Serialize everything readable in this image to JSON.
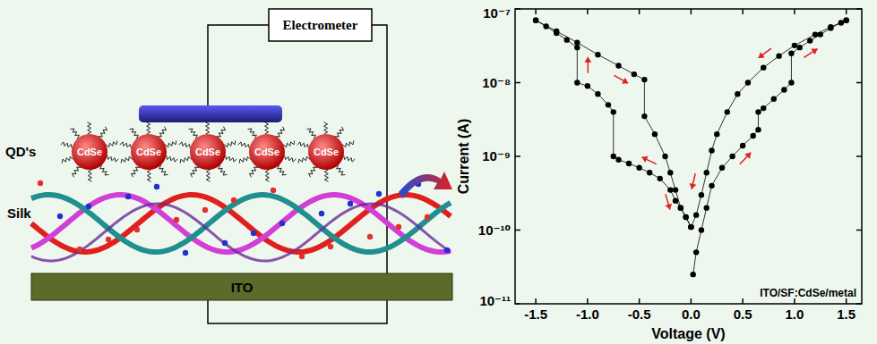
{
  "diagram": {
    "electrometer": "Electrometer",
    "qd_label": "QD's",
    "silk_label": "Silk",
    "substrate": "ITO",
    "quantum_dots": [
      "CdSe",
      "CdSe",
      "CdSe",
      "CdSe",
      "CdSe"
    ]
  },
  "chart_data": {
    "type": "line",
    "log": "y",
    "x_label": "Voltage (V)",
    "y_label": "Current (A)",
    "annotation": "ITO/SF:CdSe/metal",
    "xlim": [
      -1.7,
      1.65
    ],
    "ylim": [
      1e-11,
      1e-07
    ],
    "xticks": [
      -1.5,
      {
        "value": -1,
        "label": "-1.0"
      },
      -0.5,
      {
        "value": 0,
        "label": "0.0"
      },
      0.5,
      {
        "value": 1,
        "label": "1.0"
      },
      1.5
    ],
    "yticks": [
      {
        "value": 1e-11,
        "label": "10⁻¹¹"
      },
      {
        "value": 1e-10,
        "label": "10⁻¹⁰"
      },
      {
        "value": 1e-09,
        "label": "10⁻⁹"
      },
      {
        "value": 1e-08,
        "label": "10⁻⁸"
      },
      {
        "value": 1e-07,
        "label": "10⁻⁷"
      }
    ],
    "series": [
      {
        "color": "#000000",
        "marker": "circle",
        "x": [
          0.02,
          0.05,
          0.1,
          0.15,
          0.2,
          0.3,
          0.4,
          0.5,
          0.6,
          0.65,
          0.65,
          0.7,
          0.8,
          0.9,
          0.97,
          0.97,
          1.05,
          1.15,
          1.25,
          1.35,
          1.45,
          1.5
        ],
        "values": [
          2.5e-11,
          5e-11,
          1e-10,
          2e-10,
          4e-10,
          7e-10,
          1e-09,
          1.4e-09,
          1.9e-09,
          2.3e-09,
          4e-09,
          4.5e-09,
          6e-09,
          8e-09,
          1e-08,
          2.5e-08,
          3e-08,
          3.7e-08,
          4.5e-08,
          5.5e-08,
          6.5e-08,
          7e-08
        ]
      },
      {
        "color": "#000000",
        "marker": "circle",
        "x": [
          1.5,
          1.35,
          1.2,
          1.0,
          0.85,
          0.7,
          0.55,
          0.45,
          0.35,
          0.25,
          0.2,
          0.15,
          0.1,
          0.05,
          0.0
        ],
        "values": [
          7e-08,
          5.7e-08,
          4.5e-08,
          3.2e-08,
          2.3e-08,
          1.6e-08,
          1e-08,
          7e-09,
          4e-09,
          2e-09,
          1.2e-09,
          6e-10,
          3e-10,
          1.6e-10,
          1.1e-10
        ]
      },
      {
        "color": "#000000",
        "marker": "circle",
        "x": [
          0.0,
          -0.05,
          -0.1,
          -0.15,
          -0.2,
          -0.3,
          -0.4,
          -0.5,
          -0.6,
          -0.7,
          -0.75,
          -0.75,
          -0.8,
          -0.9,
          -1.0,
          -1.1,
          -1.1,
          -1.2,
          -1.3,
          -1.4,
          -1.5
        ],
        "values": [
          1.1e-10,
          1.5e-10,
          2e-10,
          2.5e-10,
          3.5e-10,
          5e-10,
          6e-10,
          7e-10,
          8e-10,
          9e-10,
          1e-09,
          4e-09,
          5e-09,
          7e-09,
          9e-09,
          1e-08,
          3e-08,
          3.8e-08,
          4.7e-08,
          5.8e-08,
          7e-08
        ]
      },
      {
        "color": "#000000",
        "marker": "circle",
        "x": [
          -1.5,
          -1.3,
          -1.1,
          -0.9,
          -0.7,
          -0.55,
          -0.45,
          -0.45,
          -0.35,
          -0.25,
          -0.2,
          -0.15,
          -0.1,
          -0.05,
          0.0
        ],
        "values": [
          7e-08,
          5e-08,
          3.5e-08,
          2.4e-08,
          1.7e-08,
          1.3e-08,
          1.1e-08,
          3.5e-09,
          2e-09,
          1e-09,
          6e-10,
          3.5e-10,
          2e-10,
          1.5e-10,
          1.1e-10
        ]
      }
    ]
  }
}
